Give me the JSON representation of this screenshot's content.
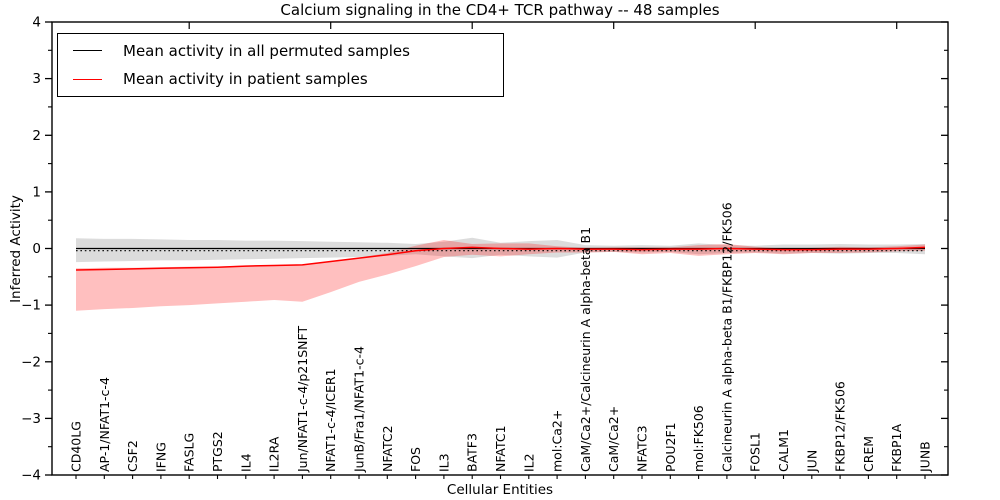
{
  "chart_data": {
    "type": "line",
    "title": "Calcium signaling in the CD4+ TCR pathway -- 48 samples",
    "xlabel": "Cellular Entities",
    "ylabel": "Inferred Activity",
    "ylim": [
      -4,
      4
    ],
    "yticks_major": [
      -4,
      -3,
      -2,
      -1,
      0,
      1,
      2,
      3,
      4
    ],
    "yticks_minor_step": 0.5,
    "top_axis_tick_indices": [
      4,
      9,
      14,
      19,
      24,
      29
    ],
    "grid": false,
    "legend_position": "upper left",
    "categories": [
      "CD40LG",
      "AP-1/NFAT1-c-4",
      "CSF2",
      "IFNG",
      "FASLG",
      "PTGS2",
      "IL4",
      "IL2RA",
      "Jun/NFAT1-c-4/p21SNFT",
      "NFAT1-c-4/ICER1",
      "JunB/Fra1/NFAT1-c-4",
      "NFATC2",
      "FOS",
      "IL3",
      "BATF3",
      "NFATC1",
      "IL2",
      "mol:Ca2+",
      "CaM/Ca2+/Calcineurin A alpha-beta B1",
      "CaM/Ca2+",
      "NFATC3",
      "POU2F1",
      "mol:FK506",
      "Calcineurin A alpha-beta B1/FKBP12/FK506",
      "FOSL1",
      "CALM1",
      "JUN",
      "FKBP12/FK506",
      "CREM",
      "FKBP1A",
      "JUNB"
    ],
    "series": [
      {
        "name": "Mean activity in all permuted samples",
        "color": "#000000",
        "band_color": "rgba(130,130,130,0.28)",
        "line_style": "solid_with_dotted_overlay",
        "values": [
          0,
          0,
          0,
          0,
          0,
          0,
          0,
          0,
          0,
          0,
          0,
          0,
          0,
          0,
          0,
          0,
          0,
          0,
          0,
          0,
          0,
          0,
          0,
          0,
          0,
          0,
          0,
          0,
          0,
          0,
          0
        ],
        "band_hi": [
          0.18,
          0.17,
          0.17,
          0.16,
          0.15,
          0.15,
          0.14,
          0.14,
          0.13,
          0.12,
          0.11,
          0.1,
          0.08,
          0.12,
          0.19,
          0.1,
          0.13,
          0.15,
          0.06,
          0.05,
          0.06,
          0.05,
          0.09,
          0.06,
          0.05,
          0.07,
          0.07,
          0.08,
          0.07,
          0.07,
          0.08
        ],
        "band_lo": [
          -0.24,
          -0.23,
          -0.22,
          -0.21,
          -0.21,
          -0.2,
          -0.19,
          -0.18,
          -0.17,
          -0.16,
          -0.15,
          -0.13,
          -0.1,
          -0.14,
          -0.17,
          -0.11,
          -0.14,
          -0.16,
          -0.07,
          -0.06,
          -0.07,
          -0.06,
          -0.1,
          -0.08,
          -0.07,
          -0.09,
          -0.08,
          -0.09,
          -0.08,
          -0.08,
          -0.1
        ]
      },
      {
        "name": "Mean activity in patient samples",
        "color": "#ff0000",
        "band_color": "rgba(255,0,0,0.25)",
        "line_style": "solid",
        "values": [
          -0.38,
          -0.37,
          -0.36,
          -0.35,
          -0.34,
          -0.33,
          -0.31,
          -0.3,
          -0.29,
          -0.23,
          -0.17,
          -0.11,
          -0.04,
          0.0,
          0.02,
          0.0,
          -0.01,
          0.0,
          -0.01,
          -0.01,
          -0.02,
          -0.01,
          -0.01,
          0.0,
          -0.01,
          -0.02,
          -0.02,
          -0.01,
          -0.01,
          0.0,
          0.02
        ],
        "band_hi": [
          0.03,
          0.03,
          0.02,
          0.02,
          0.02,
          0.01,
          0.01,
          0.0,
          0.01,
          0.0,
          0.01,
          0.03,
          0.09,
          0.15,
          0.06,
          0.09,
          0.1,
          0.04,
          0.02,
          0.03,
          0.04,
          0.03,
          0.07,
          0.08,
          0.04,
          0.02,
          0.03,
          0.04,
          0.03,
          0.04,
          0.05
        ],
        "band_lo": [
          -0.72,
          -0.7,
          -0.69,
          -0.67,
          -0.66,
          -0.64,
          -0.63,
          -0.61,
          -0.65,
          -0.54,
          -0.42,
          -0.35,
          -0.27,
          -0.15,
          -0.13,
          -0.14,
          -0.09,
          -0.07,
          -0.06,
          -0.05,
          -0.08,
          -0.07,
          -0.12,
          -0.1,
          -0.07,
          -0.08,
          -0.06,
          -0.07,
          -0.06,
          -0.05,
          -0.06
        ]
      }
    ]
  }
}
